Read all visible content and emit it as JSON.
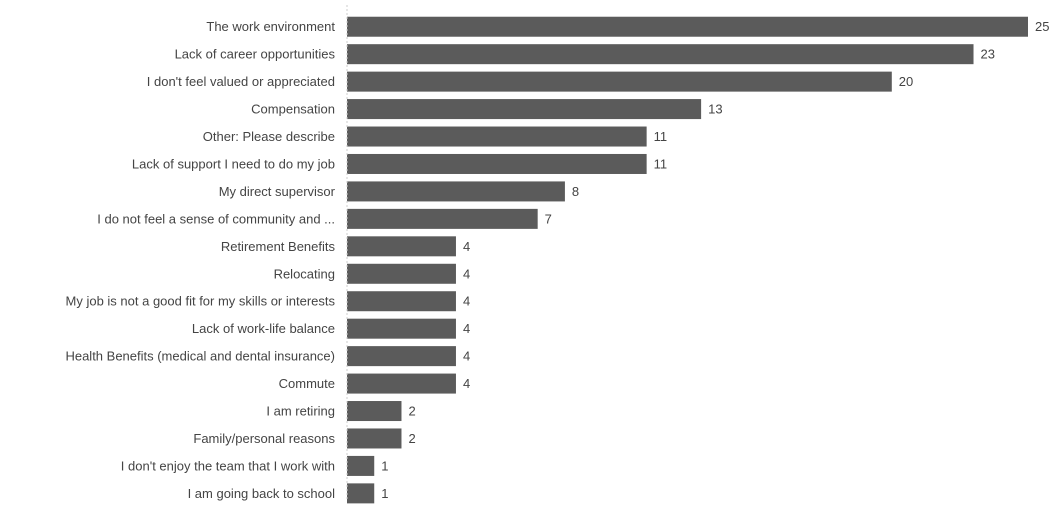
{
  "chart_data": {
    "type": "bar",
    "orientation": "horizontal",
    "categories": [
      "The work environment",
      "Lack of career opportunities",
      "I don't feel valued or appreciated",
      "Compensation",
      "Other: Please describe",
      "Lack of support I need to do my job",
      "My direct supervisor",
      "I do not feel a sense of community and ...",
      "Retirement Benefits",
      "Relocating",
      "My job is not a good fit for my skills or interests",
      "Lack of work-life balance",
      "Health Benefits (medical and dental insurance)",
      "Commute",
      "I am retiring",
      "Family/personal reasons",
      "I don't enjoy the team that I work with",
      "I am going back to school"
    ],
    "values": [
      25,
      23,
      20,
      13,
      11,
      11,
      8,
      7,
      4,
      4,
      4,
      4,
      4,
      4,
      2,
      2,
      1,
      1
    ],
    "data_labels": [
      "25",
      "23",
      "20",
      "13",
      "11",
      "11",
      "8",
      "7",
      "4",
      "4",
      "4",
      "4",
      "4",
      "4",
      "2",
      "2",
      "1",
      "1"
    ],
    "xlim": [
      0,
      25
    ],
    "title": "",
    "xlabel": "",
    "ylabel": "",
    "legend": "none",
    "grid": false,
    "colors": {
      "bar": "#5b5b5b",
      "category_label": "#444444",
      "value_label": "#444444",
      "baseline": "#cccccc"
    }
  }
}
